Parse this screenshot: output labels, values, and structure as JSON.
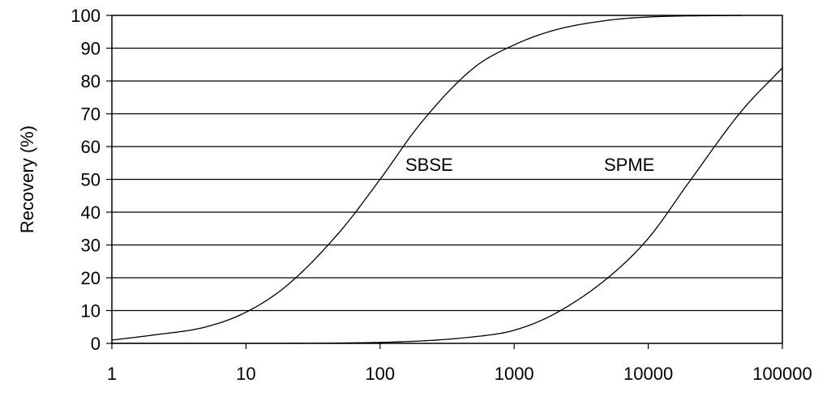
{
  "chart_data": {
    "type": "line",
    "title": "",
    "xlabel": "",
    "ylabel": "Recovery (%)",
    "x_scale": "log",
    "xlim": [
      1,
      100000
    ],
    "ylim": [
      0,
      100
    ],
    "x_ticks": [
      1,
      10,
      100,
      1000,
      10000,
      100000
    ],
    "x_tick_labels": [
      "1",
      "10",
      "100",
      "1000",
      "10000",
      "100000"
    ],
    "y_ticks": [
      0,
      10,
      20,
      30,
      40,
      50,
      60,
      70,
      80,
      90,
      100
    ],
    "y_tick_labels": [
      "0",
      "10",
      "20",
      "30",
      "40",
      "50",
      "60",
      "70",
      "80",
      "90",
      "100"
    ],
    "grid": "horizontal",
    "legend": "none",
    "series": [
      {
        "name": "SBSE",
        "x": [
          1,
          2,
          5,
          10,
          20,
          50,
          100,
          200,
          500,
          1000,
          2000,
          5000,
          10000,
          50000
        ],
        "y": [
          1,
          2.5,
          5,
          9.5,
          17.5,
          34,
          50,
          67,
          84,
          91,
          95.5,
          98.5,
          99.5,
          100
        ]
      },
      {
        "name": "SPME",
        "x": [
          1,
          10,
          100,
          500,
          1000,
          2000,
          5000,
          10000,
          20000,
          50000,
          100000
        ],
        "y": [
          0,
          0,
          0.3,
          2,
          4,
          9,
          20,
          32,
          49,
          71,
          84
        ]
      }
    ],
    "annotations": [
      "SBSE",
      "SPME"
    ]
  }
}
